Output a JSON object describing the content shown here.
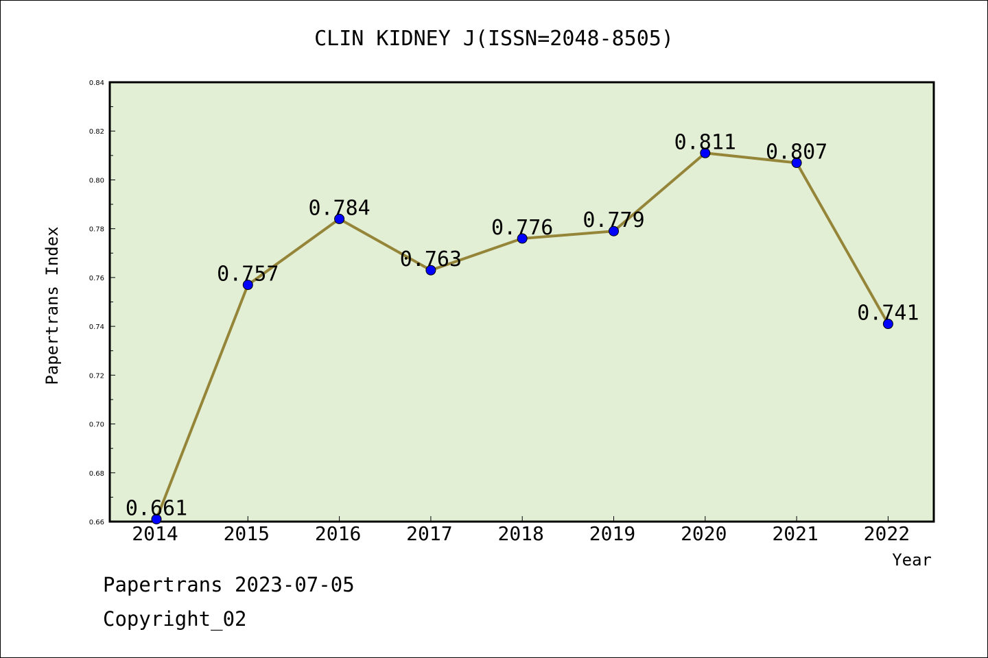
{
  "chart_data": {
    "type": "line",
    "title": "CLIN KIDNEY J(ISSN=2048-8505)",
    "xlabel": "Year",
    "ylabel": "Papertrans Index",
    "categories": [
      "2014",
      "2015",
      "2016",
      "2017",
      "2018",
      "2019",
      "2020",
      "2021",
      "2022"
    ],
    "series": [
      {
        "values": [
          0.661,
          0.757,
          0.784,
          0.763,
          0.776,
          0.779,
          0.811,
          0.807,
          0.741
        ]
      }
    ],
    "data_labels": [
      "0.661",
      "0.757",
      "0.784",
      "0.763",
      "0.776",
      "0.779",
      "0.811",
      "0.807",
      "0.741"
    ],
    "ylim": [
      0.66,
      0.84
    ],
    "yticks": [
      "0.66",
      "0.68",
      "0.70",
      "0.72",
      "0.74",
      "0.76",
      "0.78",
      "0.80",
      "0.82",
      "0.84"
    ],
    "grid": false,
    "colors": {
      "line": "#958539",
      "marker": "#0000ff",
      "plot_background": "#e2efd5"
    }
  },
  "footer": {
    "line1": "Papertrans 2023-07-05",
    "line2": "Copyright_02"
  }
}
